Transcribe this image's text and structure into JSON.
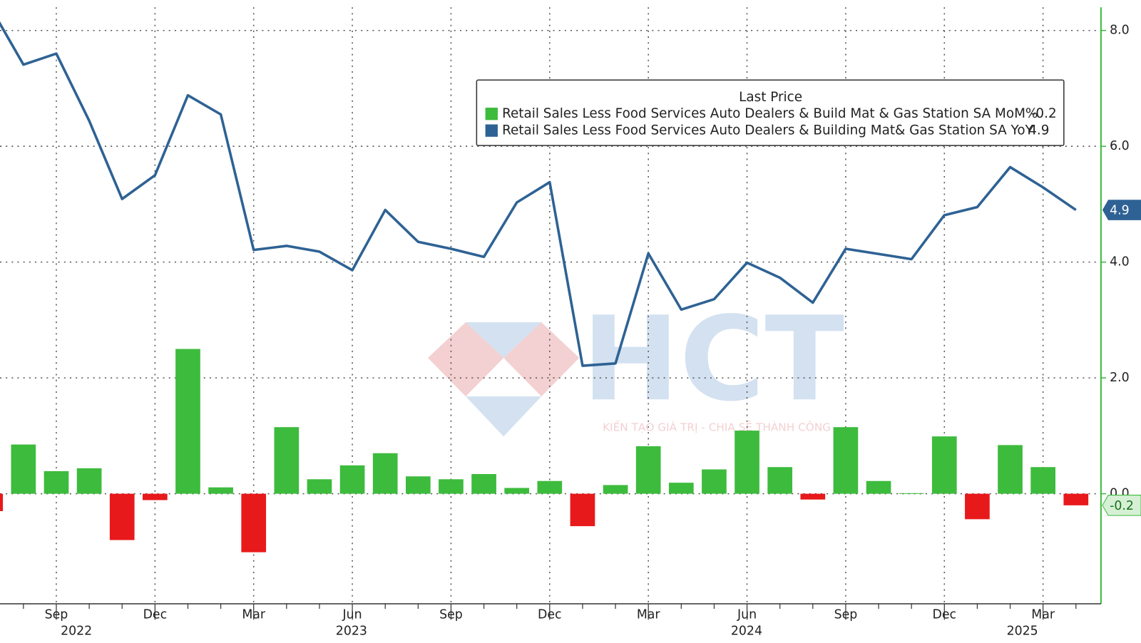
{
  "chart_data": {
    "type": "combo",
    "legend_title": "Last Price",
    "categories": [
      null,
      null,
      "Sep",
      null,
      null,
      "Dec",
      null,
      null,
      "Mar",
      null,
      null,
      "Jun",
      null,
      null,
      "Sep",
      null,
      null,
      "Dec",
      null,
      null,
      "Mar",
      null,
      null,
      "Jun",
      null,
      null,
      "Sep",
      null,
      null,
      "Dec",
      null,
      null,
      "Mar",
      null
    ],
    "years": [
      "2022",
      "2023",
      "2024",
      "2025"
    ],
    "series": [
      {
        "name": "Retail Sales Less Food Services Auto Dealers & Build Mat & Gas Station SA MoM%",
        "type": "bar",
        "color": "#3dbb3d",
        "negative_color": "#e8191b",
        "values": [
          -0.3,
          0.85,
          0.39,
          0.44,
          -0.8,
          -0.11,
          2.5,
          0.11,
          -1.01,
          1.15,
          0.25,
          0.49,
          0.7,
          0.3,
          0.25,
          0.34,
          0.1,
          0.22,
          -0.56,
          0.15,
          0.82,
          0.19,
          0.42,
          1.09,
          0.46,
          -0.1,
          1.15,
          0.22,
          0.01,
          0.99,
          -0.44,
          0.84,
          0.46,
          -0.2
        ]
      },
      {
        "name": "Retail Sales Less Food Services Auto Dealers & Building Mat& Gas Station SA YoY",
        "type": "line",
        "color": "#2e6294",
        "values": [
          8.4,
          7.41,
          7.6,
          6.44,
          5.09,
          5.5,
          6.88,
          6.55,
          4.21,
          4.28,
          4.18,
          3.86,
          4.9,
          4.35,
          4.23,
          4.09,
          5.03,
          5.38,
          2.21,
          2.25,
          4.15,
          3.18,
          3.36,
          3.99,
          3.73,
          3.3,
          4.23,
          4.14,
          4.05,
          4.81,
          4.95,
          5.64,
          5.29,
          4.9
        ]
      }
    ],
    "ylim": [
      -1.9,
      8.4
    ],
    "yticks": [
      {
        "value": 0,
        "label": "0.0"
      },
      {
        "value": 2,
        "label": "2.0"
      },
      {
        "value": 4,
        "label": "4.0"
      },
      {
        "value": 6,
        "label": "6.0"
      },
      {
        "value": 8,
        "label": "8.0"
      }
    ],
    "grid": true,
    "watermark": {
      "logo": "HCT",
      "slogan": "KIẾN TẠO GIÁ TRỊ - CHIA SẺ THÀNH CÔNG"
    }
  }
}
